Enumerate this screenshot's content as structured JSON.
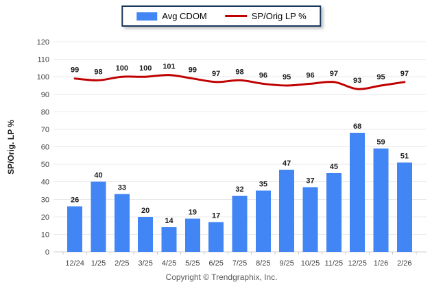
{
  "chart_data": {
    "type": "bar+line",
    "categories": [
      "12/24",
      "1/25",
      "2/25",
      "3/25",
      "4/25",
      "5/25",
      "6/25",
      "7/25",
      "8/25",
      "9/25",
      "10/25",
      "11/25",
      "12/25",
      "1/26",
      "2/26"
    ],
    "series": [
      {
        "name": "Avg CDOM",
        "type": "bar",
        "color": "#4285f4",
        "values": [
          26,
          40,
          33,
          20,
          14,
          19,
          17,
          32,
          35,
          47,
          37,
          45,
          68,
          59,
          51
        ]
      },
      {
        "name": "SP/Orig LP %",
        "type": "line",
        "color": "#c00000",
        "values": [
          99,
          98,
          100,
          100,
          101,
          99,
          97,
          98,
          96,
          95,
          96,
          97,
          93,
          95,
          97
        ]
      }
    ],
    "title": "",
    "xlabel": "",
    "ylabel": "SP/Orig. LP %",
    "ylim": [
      0,
      120
    ],
    "ytick_step": 10,
    "grid": true,
    "legend_position": "top-center",
    "data_labels": true
  },
  "colors": {
    "bar": "#4285f4",
    "line": "#c00000",
    "grid": "#e8e8e8",
    "baseline": "#cfcfcf",
    "tick_mark": "#c9c9c9",
    "axis_text": "#404040",
    "data_label_text": "#1a1a1a",
    "legend_border": "#17375d",
    "copyright_text": "#595959"
  },
  "footer": {
    "copyright": "Copyright © Trendgraphix, Inc."
  }
}
